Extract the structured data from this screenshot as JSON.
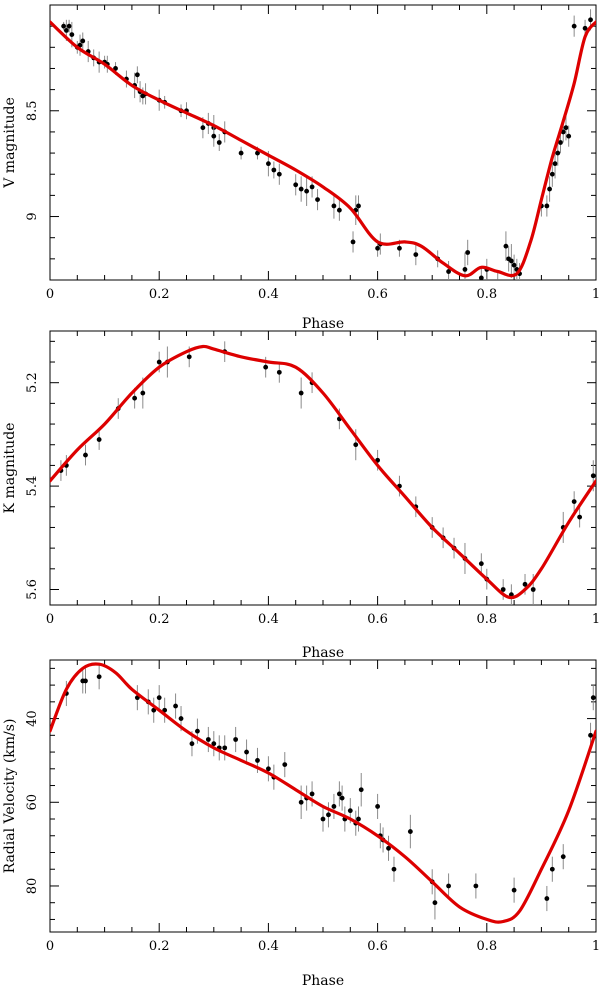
{
  "colors": {
    "fit_curve": "#dd0000",
    "points": "#000000",
    "errorbars": "#8a8a8a",
    "axes": "#000000"
  },
  "chart_data": [
    {
      "type": "scatter",
      "id": "v-band",
      "xlabel": "Phase",
      "ylabel": "V magnitude",
      "xlim": [
        0,
        1
      ],
      "ylim": [
        9.3,
        8.0
      ],
      "y_inverted": true,
      "xticks": [
        0,
        0.2,
        0.4,
        0.6,
        0.8,
        1
      ],
      "xtick_labels": [
        "0",
        "0.2",
        "0.4",
        "0.6",
        "0.8",
        "1"
      ],
      "yticks": [
        8.5,
        9
      ],
      "ytick_labels": [
        "8.5",
        "9"
      ],
      "grid": false,
      "series": [
        {
          "kind": "observations",
          "x": [
            0.025,
            0.03,
            0.035,
            0.04,
            0.05,
            0.055,
            0.06,
            0.07,
            0.08,
            0.09,
            0.1,
            0.105,
            0.12,
            0.14,
            0.155,
            0.16,
            0.165,
            0.17,
            0.175,
            0.2,
            0.21,
            0.24,
            0.25,
            0.28,
            0.29,
            0.3,
            0.3,
            0.31,
            0.32,
            0.35,
            0.38,
            0.4,
            0.41,
            0.42,
            0.45,
            0.46,
            0.47,
            0.48,
            0.49,
            0.52,
            0.53,
            0.555,
            0.56,
            0.565,
            0.6,
            0.605,
            0.64,
            0.67,
            0.71,
            0.73,
            0.76,
            0.765,
            0.79,
            0.8,
            0.82,
            0.835,
            0.84,
            0.845,
            0.85,
            0.855,
            0.86,
            0.9,
            0.91,
            0.915,
            0.92,
            0.925,
            0.93,
            0.935,
            0.94,
            0.945,
            0.95,
            0.96,
            0.98,
            0.99
          ],
          "y": [
            8.1,
            8.12,
            8.1,
            8.14,
            8.2,
            8.19,
            8.17,
            8.22,
            8.25,
            8.27,
            8.27,
            8.28,
            8.3,
            8.35,
            8.38,
            8.33,
            8.41,
            8.43,
            8.42,
            8.45,
            8.46,
            8.5,
            8.5,
            8.58,
            8.56,
            8.58,
            8.62,
            8.65,
            8.6,
            8.7,
            8.7,
            8.75,
            8.78,
            8.8,
            8.85,
            8.87,
            8.88,
            8.86,
            8.92,
            8.95,
            8.97,
            9.12,
            8.97,
            8.95,
            9.15,
            9.13,
            9.15,
            9.18,
            9.2,
            9.26,
            9.25,
            9.17,
            9.29,
            9.25,
            9.31,
            9.14,
            9.2,
            9.21,
            9.23,
            9.25,
            9.27,
            8.95,
            8.95,
            8.87,
            8.8,
            8.75,
            8.7,
            8.65,
            8.6,
            8.58,
            8.62,
            8.1,
            8.11,
            8.07
          ],
          "err": [
            0.02,
            0.05,
            0.03,
            0.06,
            0.03,
            0.05,
            0.04,
            0.05,
            0.04,
            0.05,
            0.03,
            0.04,
            0.03,
            0.04,
            0.06,
            0.04,
            0.05,
            0.04,
            0.05,
            0.05,
            0.03,
            0.03,
            0.04,
            0.05,
            0.05,
            0.06,
            0.05,
            0.04,
            0.05,
            0.03,
            0.03,
            0.06,
            0.04,
            0.05,
            0.05,
            0.06,
            0.07,
            0.05,
            0.05,
            0.06,
            0.05,
            0.05,
            0.07,
            0.05,
            0.04,
            0.05,
            0.04,
            0.05,
            0.04,
            0.05,
            0.08,
            0.06,
            0.05,
            0.05,
            0.05,
            0.07,
            0.06,
            0.08,
            0.05,
            0.05,
            0.05,
            0.05,
            0.05,
            0.06,
            0.06,
            0.07,
            0.06,
            0.05,
            0.05,
            0.06,
            0.05,
            0.05,
            0.04,
            0.05
          ]
        },
        {
          "kind": "fit",
          "x": [
            0,
            0.05,
            0.1,
            0.15,
            0.2,
            0.25,
            0.3,
            0.35,
            0.4,
            0.45,
            0.5,
            0.55,
            0.6,
            0.65,
            0.68,
            0.72,
            0.76,
            0.79,
            0.82,
            0.855,
            0.88,
            0.9,
            0.92,
            0.94,
            0.96,
            0.98,
            1
          ],
          "y": [
            8.08,
            8.2,
            8.28,
            8.38,
            8.45,
            8.51,
            8.57,
            8.64,
            8.71,
            8.78,
            8.86,
            8.96,
            9.12,
            9.12,
            9.14,
            9.22,
            9.28,
            9.24,
            9.26,
            9.27,
            9.12,
            8.92,
            8.72,
            8.55,
            8.37,
            8.15,
            8.08
          ]
        }
      ]
    },
    {
      "type": "scatter",
      "id": "k-band",
      "xlabel": "Phase",
      "ylabel": "K magnitude",
      "xlim": [
        0,
        1
      ],
      "ylim": [
        5.63,
        5.1
      ],
      "y_inverted": true,
      "xticks": [
        0,
        0.2,
        0.4,
        0.6,
        0.8,
        1
      ],
      "xtick_labels": [
        "0",
        "0.2",
        "0.4",
        "0.6",
        "0.8",
        "1"
      ],
      "yticks": [
        5.2,
        5.4,
        5.6
      ],
      "ytick_labels": [
        "5.2",
        "5.4",
        "5.6"
      ],
      "grid": false,
      "series": [
        {
          "kind": "observations",
          "x": [
            0.02,
            0.03,
            0.065,
            0.09,
            0.125,
            0.155,
            0.17,
            0.2,
            0.215,
            0.255,
            0.32,
            0.395,
            0.42,
            0.46,
            0.48,
            0.53,
            0.56,
            0.6,
            0.64,
            0.67,
            0.7,
            0.72,
            0.74,
            0.76,
            0.79,
            0.8,
            0.83,
            0.845,
            0.87,
            0.885,
            0.94,
            0.96,
            0.97,
            0.995
          ],
          "y": [
            5.37,
            5.36,
            5.34,
            5.31,
            5.25,
            5.23,
            5.22,
            5.16,
            5.16,
            5.15,
            5.14,
            5.17,
            5.18,
            5.22,
            5.2,
            5.27,
            5.32,
            5.35,
            5.4,
            5.44,
            5.48,
            5.5,
            5.52,
            5.54,
            5.55,
            5.58,
            5.6,
            5.61,
            5.59,
            5.6,
            5.48,
            5.43,
            5.46,
            5.38
          ],
          "err": [
            0.02,
            0.02,
            0.02,
            0.02,
            0.02,
            0.02,
            0.03,
            0.02,
            0.03,
            0.02,
            0.02,
            0.02,
            0.02,
            0.03,
            0.02,
            0.02,
            0.03,
            0.02,
            0.02,
            0.02,
            0.02,
            0.02,
            0.02,
            0.03,
            0.02,
            0.02,
            0.02,
            0.02,
            0.02,
            0.03,
            0.03,
            0.02,
            0.02,
            0.03
          ]
        },
        {
          "kind": "fit",
          "x": [
            0,
            0.05,
            0.1,
            0.15,
            0.2,
            0.25,
            0.28,
            0.3,
            0.35,
            0.4,
            0.45,
            0.5,
            0.55,
            0.6,
            0.65,
            0.7,
            0.75,
            0.8,
            0.84,
            0.87,
            0.9,
            0.95,
            1
          ],
          "y": [
            5.39,
            5.33,
            5.28,
            5.22,
            5.17,
            5.14,
            5.13,
            5.135,
            5.15,
            5.16,
            5.17,
            5.22,
            5.29,
            5.36,
            5.42,
            5.48,
            5.53,
            5.58,
            5.615,
            5.6,
            5.56,
            5.47,
            5.39
          ]
        }
      ]
    },
    {
      "type": "scatter",
      "id": "radial-velocity",
      "xlabel": "Phase",
      "ylabel": "Radial Velocity (km/s)",
      "xlim": [
        0,
        1
      ],
      "ylim": [
        91,
        26
      ],
      "y_inverted": true,
      "xticks": [
        0,
        0.2,
        0.4,
        0.6,
        0.8,
        1
      ],
      "xtick_labels": [
        "0",
        "0.2",
        "0.4",
        "0.6",
        "0.8",
        "1"
      ],
      "yticks": [
        40,
        60,
        80
      ],
      "ytick_labels": [
        "40",
        "60",
        "80"
      ],
      "grid": false,
      "series": [
        {
          "kind": "observations",
          "x": [
            0.03,
            0.06,
            0.065,
            0.09,
            0.16,
            0.18,
            0.19,
            0.2,
            0.21,
            0.23,
            0.24,
            0.26,
            0.27,
            0.29,
            0.3,
            0.31,
            0.32,
            0.34,
            0.36,
            0.38,
            0.4,
            0.41,
            0.43,
            0.46,
            0.47,
            0.48,
            0.5,
            0.51,
            0.52,
            0.53,
            0.535,
            0.54,
            0.55,
            0.56,
            0.565,
            0.57,
            0.6,
            0.605,
            0.61,
            0.62,
            0.63,
            0.66,
            0.7,
            0.705,
            0.73,
            0.78,
            0.85,
            0.91,
            0.92,
            0.94,
            0.99,
            0.995
          ],
          "y": [
            34,
            31,
            31,
            30,
            35,
            36,
            38,
            35,
            38,
            37,
            40,
            46,
            43,
            45,
            46,
            47,
            47,
            45,
            48,
            50,
            52,
            54,
            51,
            60,
            59,
            58,
            64,
            63,
            61,
            58,
            59,
            64,
            62,
            65,
            64,
            57,
            61,
            68,
            69,
            71,
            76,
            67,
            79,
            84,
            80,
            80,
            81,
            83,
            76,
            73,
            44,
            35
          ],
          "err": [
            3,
            3,
            3,
            3,
            3,
            3,
            3,
            3,
            3,
            3,
            3,
            3,
            3,
            3,
            3,
            3,
            3,
            3,
            3,
            3,
            3,
            3,
            3,
            4,
            3,
            3,
            3,
            3,
            3,
            3,
            3,
            3,
            3,
            3,
            3,
            4,
            3,
            3,
            3,
            3,
            3,
            4,
            3,
            4,
            3,
            3,
            3,
            3,
            3,
            3,
            3,
            3
          ]
        },
        {
          "kind": "fit",
          "x": [
            0,
            0.03,
            0.06,
            0.09,
            0.12,
            0.15,
            0.2,
            0.25,
            0.3,
            0.35,
            0.4,
            0.45,
            0.5,
            0.55,
            0.6,
            0.65,
            0.7,
            0.75,
            0.8,
            0.83,
            0.86,
            0.9,
            0.95,
            1
          ],
          "y": [
            43,
            33,
            28,
            27,
            29,
            33,
            38,
            43,
            47,
            50,
            53,
            57,
            61,
            64,
            68,
            73,
            79,
            85,
            88,
            88.5,
            86,
            76,
            62,
            43
          ]
        }
      ]
    }
  ]
}
